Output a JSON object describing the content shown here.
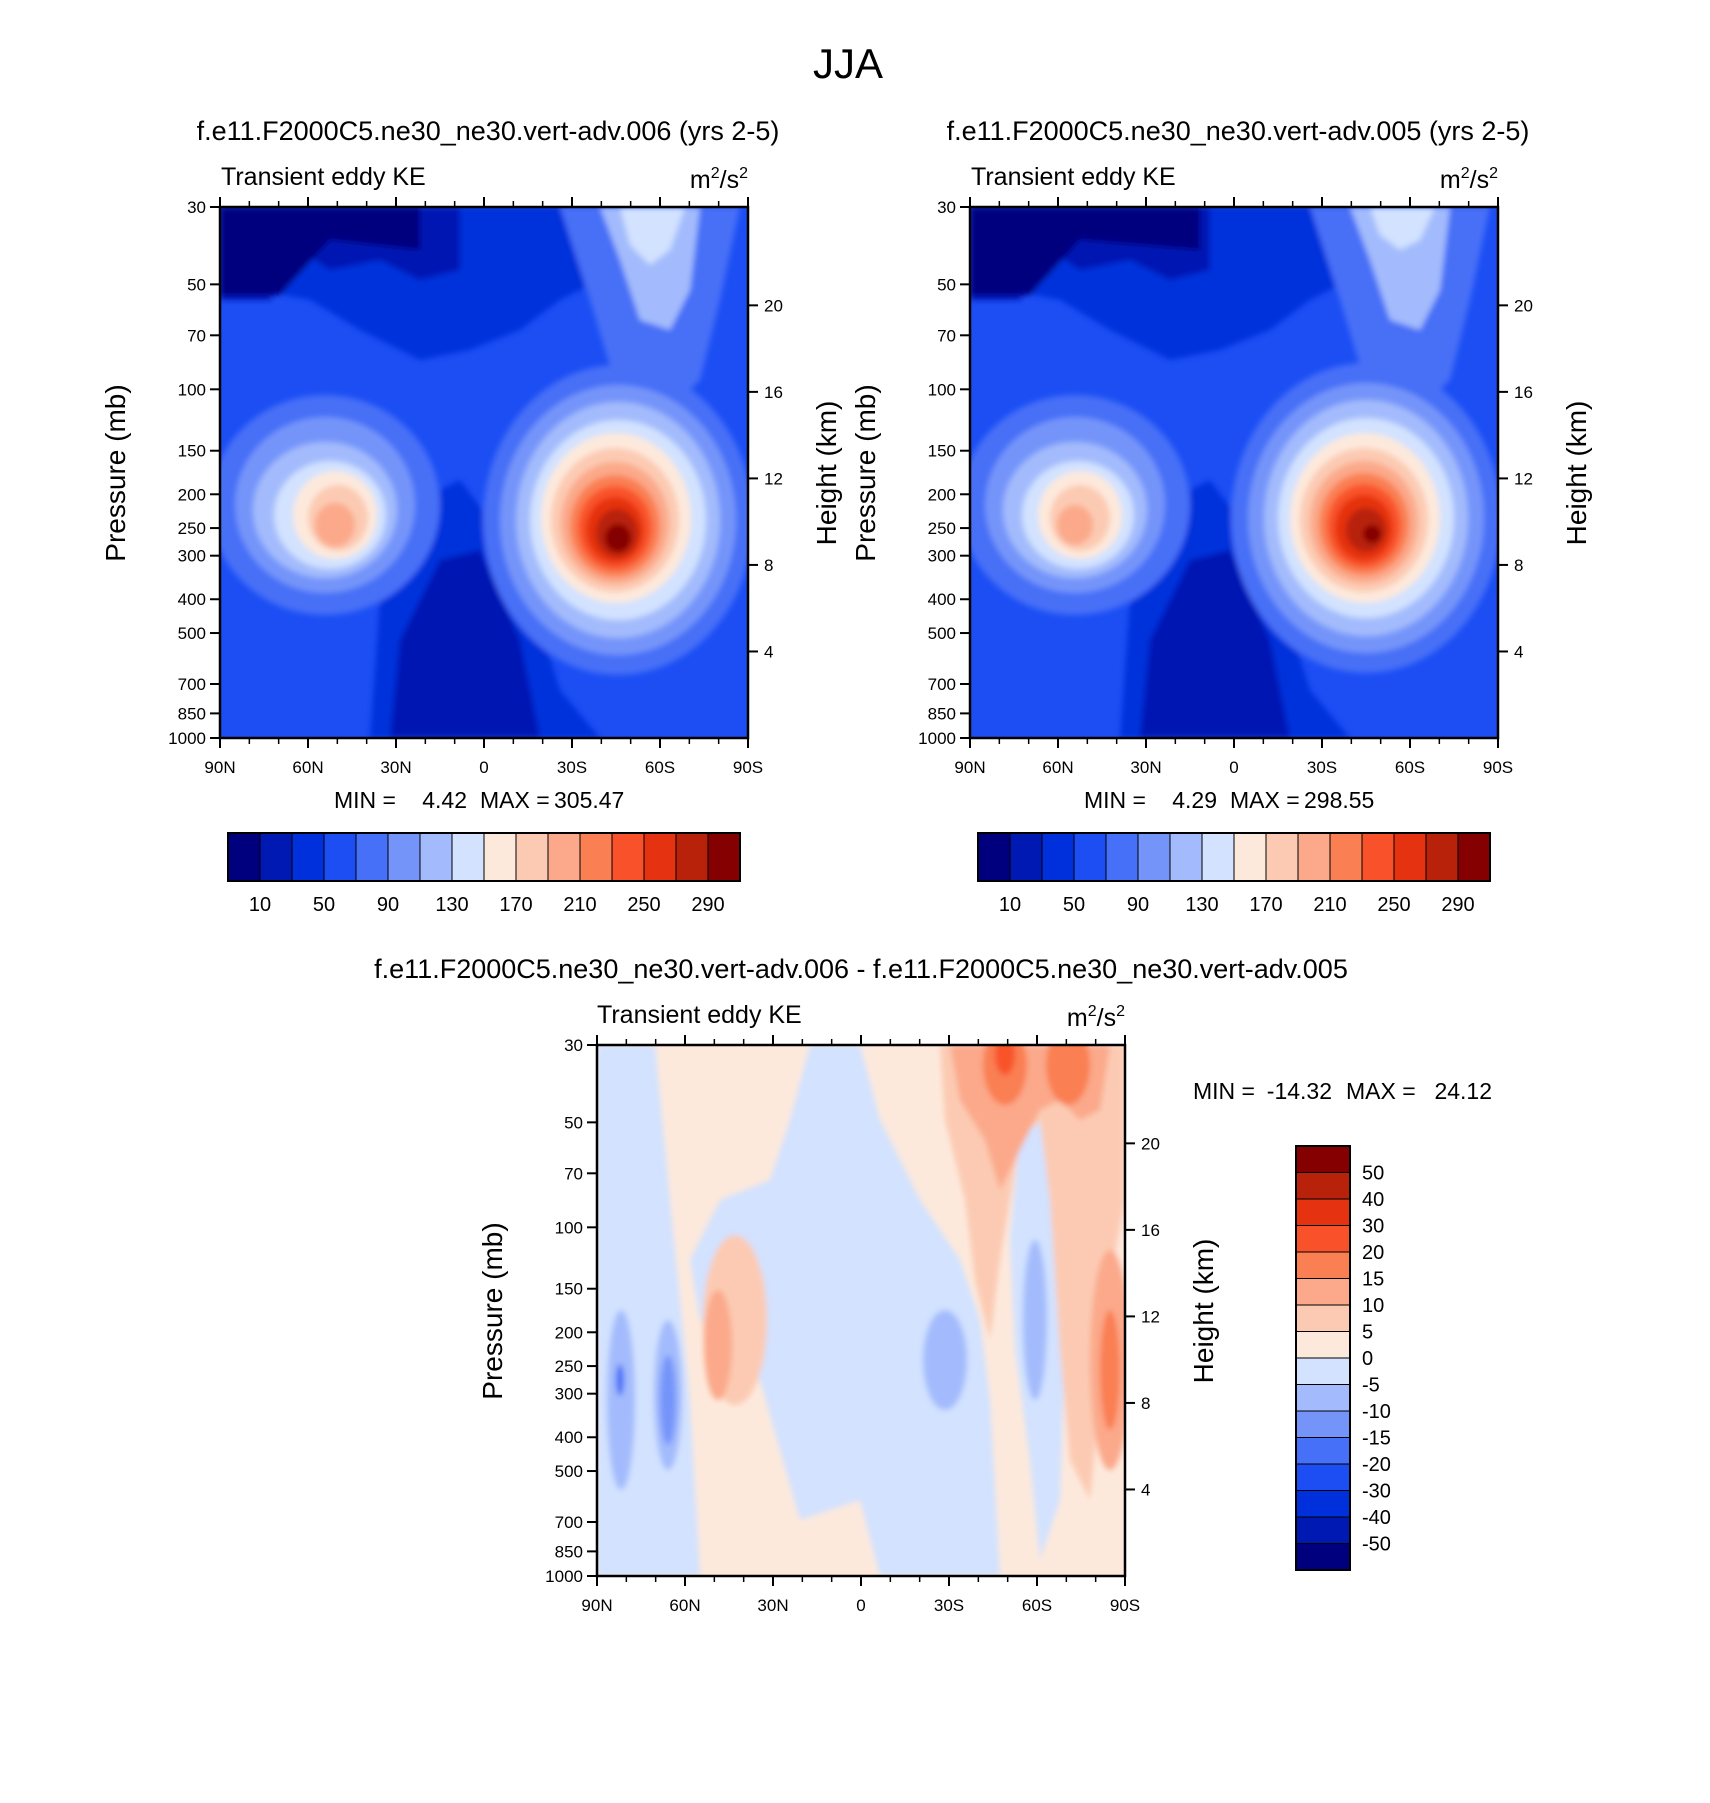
{
  "page": {
    "title": "JJA"
  },
  "colors": {
    "abs_scale": [
      "#00007f",
      "#0019b3",
      "#0030dc",
      "#1c4ef4",
      "#4670f7",
      "#7494fa",
      "#a3bbfc",
      "#d2e2ff",
      "#fde9dc",
      "#fccab2",
      "#fba98a",
      "#fa7f52",
      "#f9522b",
      "#e53311",
      "#b8220a",
      "#850000"
    ],
    "diff_scale": [
      "#00007f",
      "#0019b3",
      "#0030dc",
      "#1c4ef4",
      "#4670f7",
      "#7494fa",
      "#a3bbfc",
      "#d2e2ff",
      "#fde9dc",
      "#fccab2",
      "#fba98a",
      "#fa7f52",
      "#f9522b",
      "#e53311",
      "#b8220a",
      "#850000"
    ]
  },
  "chart_data": [
    {
      "type": "heatmap",
      "id": "top-left",
      "title": "f.e11.F2000C5.ne30_ne30.vert-adv.006 (yrs 2-5)",
      "left_label": "Transient eddy KE",
      "units": "m²/s²",
      "ylabel": "Pressure (mb)",
      "ylabel_right": "Height (km)",
      "x_ticks": [
        "90N",
        "60N",
        "30N",
        "0",
        "30S",
        "60S",
        "90S"
      ],
      "y_ticks": [
        30,
        50,
        70,
        100,
        150,
        200,
        250,
        300,
        400,
        500,
        700,
        850,
        1000
      ],
      "y_ticks_right": [
        4,
        8,
        12,
        16,
        20
      ],
      "min": 4.42,
      "max": 305.47,
      "min_label": "MIN =",
      "max_label": "MAX =",
      "min_value": "4.42",
      "max_value": "305.47",
      "levels": [
        10,
        30,
        50,
        70,
        90,
        110,
        130,
        150,
        170,
        190,
        210,
        230,
        250,
        270,
        290
      ],
      "colorbar_labels": [
        "10",
        "50",
        "90",
        "130",
        "170",
        "210",
        "250",
        "290"
      ],
      "features": [
        {
          "kind": "jet",
          "lat": -47,
          "p": 280,
          "peak": 305.47
        },
        {
          "kind": "jet",
          "lat": 52,
          "p": 250,
          "peak": 185
        },
        {
          "kind": "stratosphere",
          "lat": -35,
          "p": 30,
          "peak": 150
        }
      ]
    },
    {
      "type": "heatmap",
      "id": "top-right",
      "title": "f.e11.F2000C5.ne30_ne30.vert-adv.005 (yrs 2-5)",
      "left_label": "Transient eddy KE",
      "units": "m²/s²",
      "ylabel": "Pressure (mb)",
      "ylabel_right": "Height (km)",
      "x_ticks": [
        "90N",
        "60N",
        "30N",
        "0",
        "30S",
        "60S",
        "90S"
      ],
      "y_ticks": [
        30,
        50,
        70,
        100,
        150,
        200,
        250,
        300,
        400,
        500,
        700,
        850,
        1000
      ],
      "y_ticks_right": [
        4,
        8,
        12,
        16,
        20
      ],
      "min": 4.29,
      "max": 298.55,
      "min_label": "MIN =",
      "max_label": "MAX =",
      "min_value": "4.29",
      "max_value": "298.55",
      "levels": [
        10,
        30,
        50,
        70,
        90,
        110,
        130,
        150,
        170,
        190,
        210,
        230,
        250,
        270,
        290
      ],
      "colorbar_labels": [
        "10",
        "50",
        "90",
        "130",
        "170",
        "210",
        "250",
        "290"
      ],
      "features": [
        {
          "kind": "jet",
          "lat": -47,
          "p": 270,
          "peak": 298.55
        },
        {
          "kind": "jet",
          "lat": 55,
          "p": 250,
          "peak": 175
        },
        {
          "kind": "stratosphere",
          "lat": -35,
          "p": 30,
          "peak": 135
        }
      ]
    },
    {
      "type": "heatmap",
      "id": "bottom",
      "title": "f.e11.F2000C5.ne30_ne30.vert-adv.006 - f.e11.F2000C5.ne30_ne30.vert-adv.005",
      "left_label": "Transient eddy KE",
      "units": "m²/s²",
      "ylabel": "Pressure (mb)",
      "ylabel_right": "Height (km)",
      "x_ticks": [
        "90N",
        "60N",
        "30N",
        "0",
        "30S",
        "60S",
        "90S"
      ],
      "y_ticks": [
        30,
        50,
        70,
        100,
        150,
        200,
        250,
        300,
        400,
        500,
        700,
        850,
        1000
      ],
      "y_ticks_right": [
        4,
        8,
        12,
        16,
        20
      ],
      "min": -14.32,
      "max": 24.12,
      "min_label": "MIN =",
      "max_label": "MAX =",
      "min_value": "-14.32",
      "max_value": "24.12",
      "levels": [
        -50,
        -40,
        -30,
        -20,
        -15,
        -10,
        -5,
        0,
        5,
        10,
        15,
        20,
        30,
        40,
        50
      ],
      "colorbar_labels": [
        "50",
        "40",
        "30",
        "20",
        "15",
        "10",
        "5",
        "0",
        "-5",
        "-10",
        "-15",
        "-20",
        "-30",
        "-40",
        "-50"
      ]
    }
  ]
}
